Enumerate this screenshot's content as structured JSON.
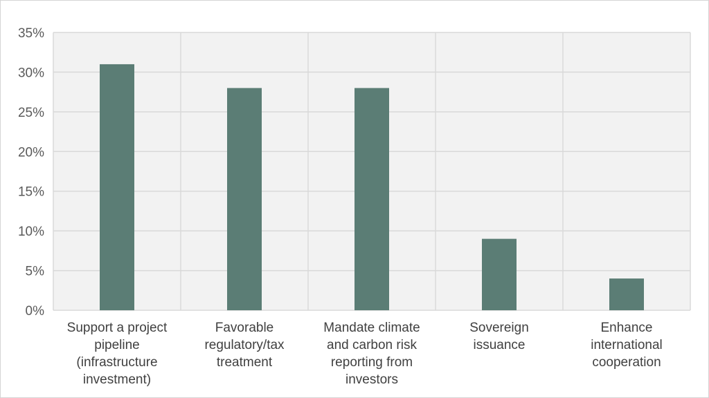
{
  "chart_data": {
    "type": "bar",
    "categories": [
      [
        "Support a project",
        "pipeline",
        "(infrastructure",
        "investment)"
      ],
      [
        "Favorable",
        "regulatory/tax",
        "treatment"
      ],
      [
        "Mandate climate",
        "and carbon risk",
        "reporting from",
        "investors"
      ],
      [
        "Sovereign",
        "issuance"
      ],
      [
        "Enhance",
        "international",
        "cooperation"
      ]
    ],
    "values": [
      31,
      28,
      28,
      9,
      4
    ],
    "ylim": [
      0,
      35
    ],
    "yticks": [
      "0%",
      "5%",
      "10%",
      "15%",
      "20%",
      "25%",
      "30%",
      "35%"
    ],
    "ytick_values": [
      0,
      5,
      10,
      15,
      20,
      25,
      30,
      35
    ],
    "title": "",
    "xlabel": "",
    "ylabel": "",
    "grid": true,
    "colors": {
      "bar": "#5b7d75",
      "plot_background": "#f2f2f2",
      "gridline": "#d9d9d9"
    }
  }
}
